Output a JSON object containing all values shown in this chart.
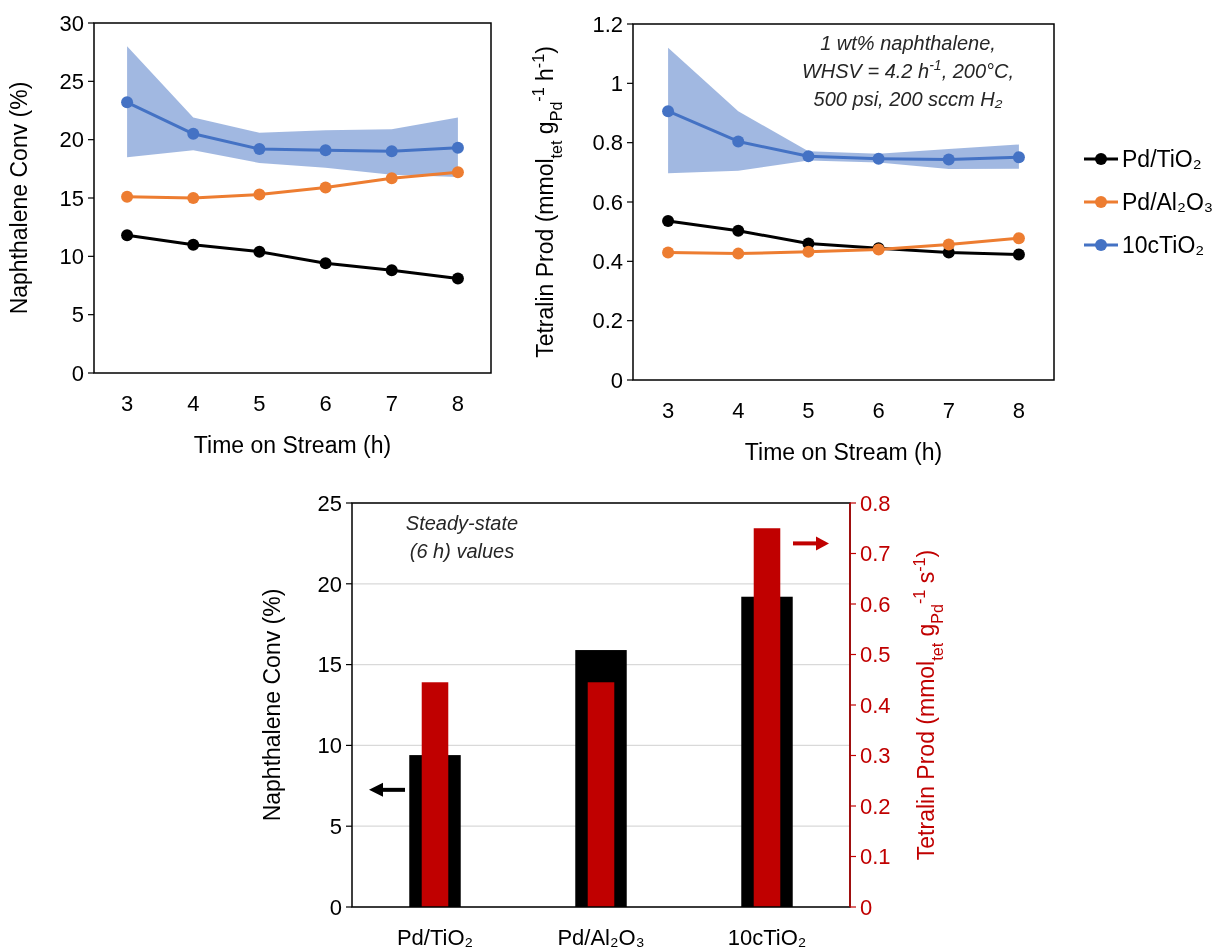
{
  "chart_data": [
    {
      "type": "line",
      "xlabel": "Time on Stream (h)",
      "ylabel": "Naphthalene Conv (%)",
      "x": [
        3,
        4,
        5,
        6,
        7,
        8
      ],
      "xlim": [
        2.5,
        8.5
      ],
      "xticks": [
        3,
        4,
        5,
        6,
        7,
        8
      ],
      "ylim": [
        0,
        30
      ],
      "yticks": [
        0,
        5,
        10,
        15,
        20,
        25,
        30
      ],
      "marker": "circle",
      "grid": false,
      "series": [
        {
          "color": "#000000",
          "values": [
            11.8,
            11.0,
            10.4,
            9.4,
            8.8,
            8.1
          ]
        },
        {
          "color": "#ed7d31",
          "values": [
            15.1,
            15.0,
            15.3,
            15.9,
            16.7,
            17.2
          ]
        },
        {
          "color": "#4472c4",
          "values": [
            23.2,
            20.5,
            19.2,
            19.1,
            19.0,
            19.3
          ],
          "lower": [
            18.5,
            19.1,
            18.0,
            17.6,
            17.0,
            16.8
          ],
          "upper": [
            28.0,
            21.9,
            20.6,
            20.8,
            20.9,
            21.9
          ]
        }
      ]
    },
    {
      "type": "line",
      "xlabel": "Time on Stream (h)",
      "ylabel": "Tetralin Prod (mmol$_{tet}$ g$_{Pd}$$^{-1}$ h$^{-1}$)",
      "annotations": [
        "1 wt% naphthalene,",
        "WHSV = 4.2 h$^{-1}$, 200°C,",
        "500 psi, 200 sccm H₂"
      ],
      "x": [
        3,
        4,
        5,
        6,
        7,
        8
      ],
      "xlim": [
        2.5,
        8.5
      ],
      "xticks": [
        3,
        4,
        5,
        6,
        7,
        8
      ],
      "ylim": [
        0,
        1.2
      ],
      "yticks": [
        0,
        0.2,
        0.4,
        0.6,
        0.8,
        1,
        1.2
      ],
      "marker": "circle",
      "grid": false,
      "legend": "right",
      "series": [
        {
          "name": "Pd/TiO₂",
          "color": "#000000",
          "values": [
            0.536,
            0.503,
            0.46,
            0.444,
            0.43,
            0.423
          ]
        },
        {
          "name": "Pd/Al₂O₃",
          "color": "#ed7d31",
          "values": [
            0.43,
            0.426,
            0.432,
            0.44,
            0.457,
            0.478
          ]
        },
        {
          "name": "10cTiO₂",
          "color": "#4472c4",
          "values": [
            0.906,
            0.804,
            0.754,
            0.746,
            0.743,
            0.751
          ],
          "lower": [
            0.697,
            0.705,
            0.74,
            0.733,
            0.711,
            0.712
          ],
          "upper": [
            1.12,
            0.906,
            0.771,
            0.763,
            0.779,
            0.794
          ]
        }
      ]
    },
    {
      "type": "bar",
      "ylabel": "Naphthalene Conv (%)",
      "y2label": "Tetralin Prod (mmol$_{tet}$ g$_{Pd}$$^{-1}$ s$^{-1}$)",
      "annotations": [
        "Steady-state",
        "(6 h) values"
      ],
      "categories": [
        "Pd/TiO₂",
        "Pd/Al₂O₃",
        "10cTiO₂"
      ],
      "ylim": [
        0,
        25
      ],
      "yticks": [
        0,
        5,
        10,
        15,
        20,
        25
      ],
      "y2lim": [
        0,
        0.8
      ],
      "y2ticks": [
        0,
        0.1,
        0.2,
        0.3,
        0.4,
        0.5,
        0.6,
        0.7,
        0.8
      ],
      "grid": "y",
      "series": [
        {
          "color": "#000000",
          "values": [
            9.4,
            15.9,
            19.2
          ]
        },
        {
          "color": "#c00000",
          "axis": "y2",
          "values": [
            0.445,
            0.445,
            0.75
          ]
        }
      ]
    }
  ]
}
